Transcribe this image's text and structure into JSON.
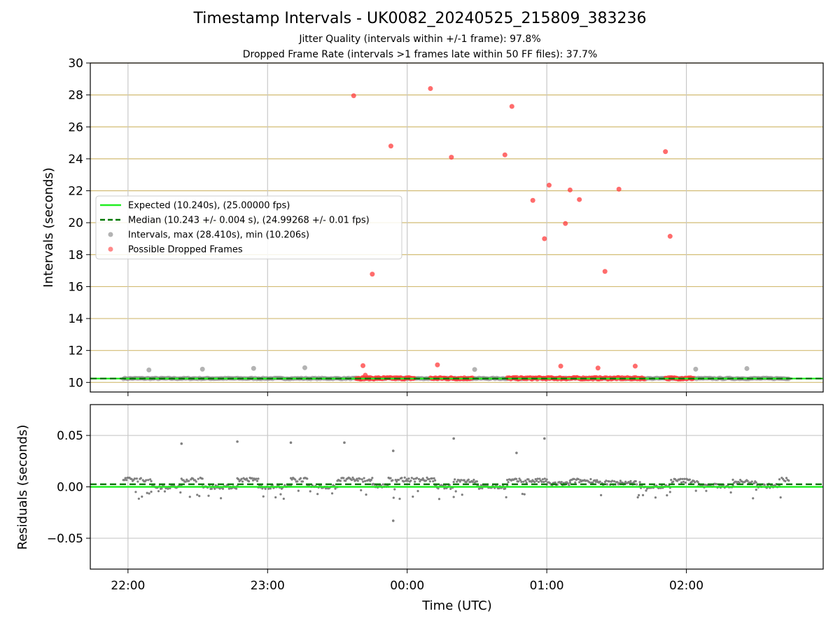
{
  "title": "Timestamp Intervals - UK0082_20240525_215809_383236",
  "subtitle_1": "Jitter Quality (intervals within +/-1 frame): 97.8%",
  "subtitle_2": "Dropped Frame Rate (intervals >1 frames late within 50 FF files): 37.7%",
  "colors": {
    "expected": "#22ee22",
    "median": "#007700",
    "intervals": "#808080",
    "dropped": "#ff3b3b",
    "hgrid_top": "#d2bb73",
    "grid": "#c8c8c8"
  },
  "chart_data": [
    {
      "type": "scatter",
      "panel": "intervals",
      "ylabel": "Intervals (seconds)",
      "ylim": [
        9.4,
        30
      ],
      "yticks": [
        "10",
        "12",
        "14",
        "16",
        "18",
        "20",
        "22",
        "24",
        "26",
        "28",
        "30"
      ],
      "xlim_hours": [
        21.73,
        26.98
      ],
      "xtick_labels": [
        "22:00",
        "23:00",
        "00:00",
        "01:00",
        "02:00"
      ],
      "grid": true,
      "legend_position": "center-left",
      "legend": [
        "Expected (10.240s), (25.00000 fps)",
        "Median (10.243 +/- 0.004 s), (24.99268 +/- 0.01 fps)",
        "Intervals, max (28.410s), min (10.206s)",
        "Possible Dropped Frames"
      ],
      "expected_value": 10.24,
      "median_value": 10.243,
      "series": [
        {
          "name": "Intervals, max (28.410s), min (10.206s)",
          "points": [
            [
              "22:09",
              10.78
            ],
            [
              "22:32",
              10.83
            ],
            [
              "22:54",
              10.88
            ],
            [
              "23:16",
              10.92
            ],
            [
              "00:29",
              10.81
            ],
            [
              "02:04",
              10.83
            ],
            [
              "02:26",
              10.87
            ]
          ]
        },
        {
          "name": "Possible Dropped Frames",
          "points": [
            [
              "23:37",
              27.95
            ],
            [
              "23:45",
              16.78
            ],
            [
              "23:53",
              24.8
            ],
            [
              "00:10",
              28.4
            ],
            [
              "00:19",
              24.1
            ],
            [
              "00:42",
              24.25
            ],
            [
              "00:45",
              27.28
            ],
            [
              "00:54",
              21.4
            ],
            [
              "00:59",
              19.0
            ],
            [
              "01:01",
              22.35
            ],
            [
              "01:08",
              19.95
            ],
            [
              "01:10",
              22.05
            ],
            [
              "01:14",
              21.45
            ],
            [
              "01:25",
              16.95
            ],
            [
              "01:31",
              22.1
            ],
            [
              "01:51",
              24.45
            ],
            [
              "01:53",
              19.15
            ],
            [
              "23:41",
              11.05
            ],
            [
              "00:13",
              11.1
            ],
            [
              "01:06",
              11.02
            ],
            [
              "01:22",
              10.9
            ],
            [
              "01:38",
              11.02
            ],
            [
              "23:42",
              10.45
            ]
          ],
          "dense_bands": [
            [
              "23:38",
              "00:03"
            ],
            [
              "00:10",
              "00:28"
            ],
            [
              "00:43",
              "01:24"
            ],
            [
              "01:25",
              "01:42"
            ],
            [
              "01:51",
              "02:03"
            ]
          ]
        }
      ]
    },
    {
      "type": "scatter",
      "panel": "residuals",
      "xlabel": "Time (UTC)",
      "ylabel": "Residuals (seconds)",
      "ylim": [
        -0.08,
        0.08
      ],
      "yticks": [
        "−0.05",
        "0.00",
        "0.05"
      ],
      "xtick_labels": [
        "22:00",
        "23:00",
        "00:00",
        "01:00",
        "02:00"
      ],
      "expected_value": 0.0,
      "median_value": 0.0025,
      "outliers": [
        [
          "22:23",
          0.042
        ],
        [
          "22:47",
          0.044
        ],
        [
          "23:10",
          0.043
        ],
        [
          "23:33",
          0.043
        ],
        [
          "23:54",
          0.035
        ],
        [
          "00:20",
          0.047
        ],
        [
          "00:47",
          0.033
        ],
        [
          "00:59",
          0.047
        ],
        [
          "23:54",
          -0.033
        ]
      ]
    }
  ]
}
